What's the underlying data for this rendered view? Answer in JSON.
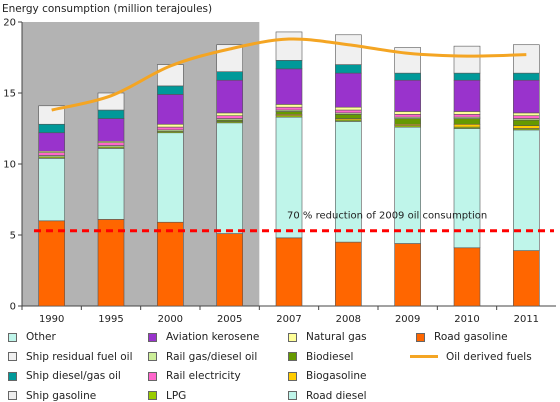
{
  "chart_data": {
    "type": "bar",
    "ylabel": "Energy consumption (million terajoules)",
    "ylim": [
      0,
      20
    ],
    "y_ticks": [
      "0",
      "5",
      "10",
      "15",
      "20"
    ],
    "categories": [
      "1990",
      "1995",
      "2000",
      "2005",
      "2007",
      "2008",
      "2009",
      "2010",
      "2011"
    ],
    "highlighted_categories": [
      "1990",
      "1995",
      "2000",
      "2005"
    ],
    "stacked": true,
    "series": [
      {
        "name": "Road gasoline",
        "color": "#ff6600",
        "values": [
          6.0,
          6.1,
          5.9,
          5.1,
          4.8,
          4.5,
          4.4,
          4.1,
          3.9
        ]
      },
      {
        "name": "Road diesel",
        "color": "#bff5ea",
        "values": [
          4.4,
          5.0,
          6.3,
          7.8,
          8.5,
          8.5,
          8.2,
          8.4,
          8.5
        ]
      },
      {
        "name": "LPG",
        "color": "#99cc00",
        "values": [
          0.1,
          0.1,
          0.1,
          0.1,
          0.1,
          0.1,
          0.1,
          0.1,
          0.1
        ]
      },
      {
        "name": "Biogasoline",
        "color": "#ffcc00",
        "values": [
          0.0,
          0.0,
          0.0,
          0.0,
          0.1,
          0.1,
          0.1,
          0.2,
          0.2
        ]
      },
      {
        "name": "Biodiesel",
        "color": "#669900",
        "values": [
          0.0,
          0.0,
          0.0,
          0.1,
          0.2,
          0.3,
          0.4,
          0.4,
          0.4
        ]
      },
      {
        "name": "Rail gas/diesel oil",
        "color": "#ccee99",
        "values": [
          0.1,
          0.1,
          0.1,
          0.1,
          0.1,
          0.1,
          0.1,
          0.1,
          0.1
        ]
      },
      {
        "name": "Rail electricity",
        "color": "#ff66cc",
        "values": [
          0.2,
          0.2,
          0.2,
          0.2,
          0.2,
          0.2,
          0.2,
          0.2,
          0.2
        ]
      },
      {
        "name": "Natural gas",
        "color": "#ffff99",
        "values": [
          0.1,
          0.1,
          0.2,
          0.2,
          0.2,
          0.2,
          0.2,
          0.2,
          0.2
        ]
      },
      {
        "name": "Aviation kerosene",
        "color": "#9933cc",
        "values": [
          1.3,
          1.6,
          2.1,
          2.3,
          2.5,
          2.4,
          2.2,
          2.2,
          2.3
        ]
      },
      {
        "name": "Ship gasoline",
        "color": "#eeeeee",
        "values": [
          0.0,
          0.0,
          0.0,
          0.0,
          0.0,
          0.0,
          0.0,
          0.0,
          0.0
        ]
      },
      {
        "name": "Ship diesel/gas oil",
        "color": "#009999",
        "values": [
          0.6,
          0.6,
          0.6,
          0.6,
          0.6,
          0.6,
          0.5,
          0.5,
          0.5
        ]
      },
      {
        "name": "Ship residual fuel oil",
        "color": "#f0f0f0",
        "values": [
          1.3,
          1.2,
          1.5,
          1.9,
          2.0,
          2.1,
          1.8,
          1.9,
          2.0
        ]
      },
      {
        "name": "Other",
        "color": "#bff5ea",
        "values": [
          0.0,
          0.0,
          0.0,
          0.0,
          0.0,
          0.0,
          0.0,
          0.0,
          0.0
        ]
      }
    ],
    "line_series": {
      "name": "Oil derived fuels",
      "color": "#f4a523",
      "values": [
        13.8,
        14.8,
        16.9,
        18.1,
        18.8,
        18.4,
        17.8,
        17.6,
        17.7
      ]
    },
    "reference_line": {
      "label": "70 % reduction of 2009 oil consumption",
      "value": 5.3,
      "color": "#ff0000"
    },
    "legend": {
      "placement": "bottom",
      "rows": [
        [
          "Other",
          "Aviation kerosene",
          "Natural gas",
          "Road gasoline"
        ],
        [
          "Ship residual fuel oil",
          "Rail gas/diesel oil",
          "Biodiesel",
          "Oil derived fuels"
        ],
        [
          "Ship diesel/gas oil",
          "Rail electricity",
          "Biogasoline",
          ""
        ],
        [
          "Ship gasoline",
          "LPG",
          "Road diesel",
          ""
        ]
      ]
    }
  }
}
